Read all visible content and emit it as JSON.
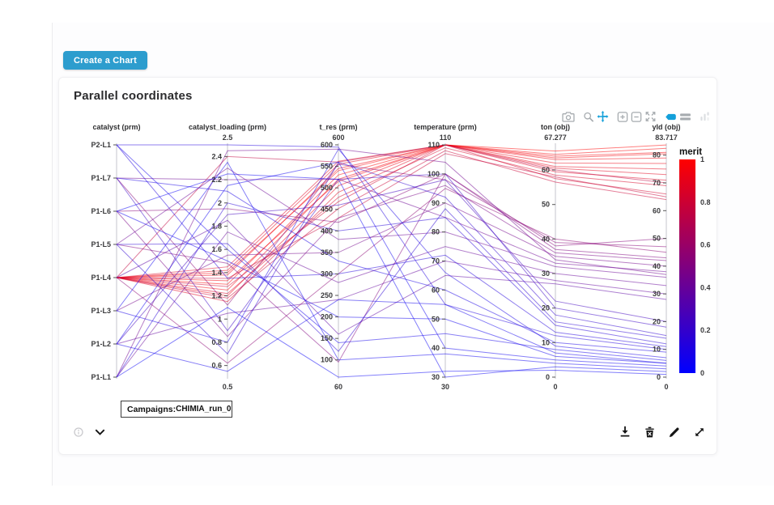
{
  "header": {
    "create_chart_button": "Create a Chart"
  },
  "card": {
    "title": "Parallel coordinates",
    "campaigns": {
      "label": "Campaigns:",
      "value": "CHIMIA_run_0"
    },
    "modebar": {
      "icon_color": "#a6abaf",
      "active_color": "#14a0da",
      "icons": [
        {
          "name": "camera-icon",
          "active": false,
          "group_start": false
        },
        {
          "name": "zoom-icon",
          "active": false,
          "group_start": true
        },
        {
          "name": "pan-icon",
          "active": true,
          "group_start": false
        },
        {
          "name": "zoom-in-icon",
          "active": false,
          "group_start": true
        },
        {
          "name": "zoom-out-icon",
          "active": false,
          "group_start": false
        },
        {
          "name": "autoscale-icon",
          "active": false,
          "group_start": false
        },
        {
          "name": "hover-closest-icon",
          "active": true,
          "group_start": true
        },
        {
          "name": "hover-compare-icon",
          "active": false,
          "group_start": false
        },
        {
          "name": "plotly-logo-icon",
          "active": false,
          "group_start": true
        }
      ]
    },
    "footer": {
      "left_icons": [
        "info-icon",
        "chevron-down-icon"
      ],
      "right_icons": [
        "download-icon",
        "delete-icon",
        "edit-icon",
        "expand-icon"
      ]
    }
  },
  "chart_data": {
    "type": "parallel-coordinates",
    "title": "Parallel coordinates",
    "line_opacity": 0.5,
    "colorbar": {
      "title": "merit",
      "tick_labels": [
        "1",
        "0.8",
        "0.6",
        "0.4",
        "0.2",
        "0"
      ],
      "top_color": "#ff0000",
      "bottom_color": "#0000ff"
    },
    "axes": [
      {
        "label": "catalyst (prm)",
        "type": "category",
        "categories_bottom_to_top": [
          "P1-L1",
          "P1-L2",
          "P1-L3",
          "P1-L4",
          "P1-L5",
          "P1-L6",
          "P1-L7",
          "P2-L1"
        ]
      },
      {
        "label": "catalyst_loading (prm)",
        "type": "linear",
        "range": [
          0.5,
          2.5
        ],
        "top_label": "2.5",
        "bottom_label": "0.5",
        "ticks": [
          "2.4",
          "2.2",
          "2",
          "1.8",
          "1.6",
          "1.4",
          "1.2",
          "1",
          "0.8",
          "0.6"
        ]
      },
      {
        "label": "t_res (prm)",
        "type": "linear",
        "range": [
          60,
          600
        ],
        "top_label": "600",
        "bottom_label": "60",
        "ticks": [
          "600",
          "550",
          "500",
          "450",
          "400",
          "350",
          "300",
          "250",
          "200",
          "150",
          "100"
        ]
      },
      {
        "label": "temperature (prm)",
        "type": "linear",
        "range": [
          30,
          110
        ],
        "top_label": "110",
        "bottom_label": "30",
        "ticks": [
          "110",
          "100",
          "90",
          "80",
          "70",
          "60",
          "50",
          "40",
          "30"
        ]
      },
      {
        "label": "ton (obj)",
        "type": "linear",
        "range": [
          0,
          67.277
        ],
        "top_label": "67.277",
        "bottom_label": "0",
        "ticks": [
          "60",
          "50",
          "40",
          "30",
          "20",
          "10",
          "0"
        ]
      },
      {
        "label": "yld (obj)",
        "type": "linear",
        "range": [
          0,
          83.717
        ],
        "top_label": "83.717",
        "bottom_label": "0",
        "ticks": [
          "80",
          "70",
          "60",
          "50",
          "40",
          "30",
          "20",
          "10",
          "0"
        ]
      }
    ],
    "lines": [
      {
        "values": [
          "P1-L4",
          1.3,
          530,
          110,
          65.5,
          83.7
        ],
        "merit": 1.0
      },
      {
        "values": [
          "P1-L4",
          1.4,
          540,
          110,
          64.5,
          82.5
        ],
        "merit": 0.98
      },
      {
        "values": [
          "P1-L4",
          1.25,
          520,
          110,
          64.0,
          81.0
        ],
        "merit": 0.97
      },
      {
        "values": [
          "P1-L4",
          1.33,
          515,
          110,
          63.5,
          80.5
        ],
        "merit": 0.96
      },
      {
        "values": [
          "P1-L4",
          1.38,
          545,
          110,
          63.0,
          79.0
        ],
        "merit": 0.95
      },
      {
        "values": [
          "P1-L4",
          1.2,
          505,
          110,
          62.0,
          77.0
        ],
        "merit": 0.93
      },
      {
        "values": [
          "P1-L4",
          1.42,
          555,
          110,
          61.0,
          75.0
        ],
        "merit": 0.91
      },
      {
        "values": [
          "P1-L4",
          1.15,
          490,
          110,
          60.5,
          73.0
        ],
        "merit": 0.89
      },
      {
        "values": [
          "P1-L4",
          1.45,
          562,
          110,
          59.5,
          71.0
        ],
        "merit": 0.87
      },
      {
        "values": [
          "P1-L4",
          1.22,
          478,
          109,
          58.5,
          69.0
        ],
        "merit": 0.85
      },
      {
        "values": [
          "P1-L4",
          1.28,
          468,
          110,
          57.5,
          66.0
        ],
        "merit": 0.83
      },
      {
        "values": [
          "P1-L4",
          1.18,
          452,
          108,
          56.5,
          64.0
        ],
        "merit": 0.8
      },
      {
        "values": [
          "P1-L4",
          1.35,
          430,
          107,
          58.0,
          65.0
        ],
        "merit": 0.78
      },
      {
        "values": [
          "P1-L4",
          2.4,
          560,
          110,
          60.0,
          70.0
        ],
        "merit": 0.76
      },
      {
        "values": [
          "P1-L4",
          0.62,
          300,
          95,
          40.0,
          45.0
        ],
        "merit": 0.55
      },
      {
        "values": [
          "P1-L7",
          1.12,
          555,
          98,
          39.0,
          47.0
        ],
        "merit": 0.53
      },
      {
        "values": [
          "P1-L6",
          1.95,
          420,
          100,
          38.0,
          50.0
        ],
        "merit": 0.52
      },
      {
        "values": [
          "P1-L5",
          1.48,
          95,
          100,
          37.0,
          43.0
        ],
        "merit": 0.5
      },
      {
        "values": [
          "P1-L6",
          0.85,
          430,
          96,
          36.0,
          42.0
        ],
        "merit": 0.48
      },
      {
        "values": [
          "P1-L3",
          1.55,
          350,
          90,
          35.0,
          40.0
        ],
        "merit": 0.45
      },
      {
        "values": [
          "P1-L1",
          2.45,
          590,
          104,
          34.0,
          37.0
        ],
        "merit": 0.44
      },
      {
        "values": [
          "P1-L7",
          2.2,
          520,
          85,
          33.0,
          38.0
        ],
        "merit": 0.42
      },
      {
        "values": [
          "P1-L5",
          2.3,
          380,
          80,
          32.0,
          36.0
        ],
        "merit": 0.41
      },
      {
        "values": [
          "P1-L1",
          1.75,
          280,
          75,
          30.0,
          33.0
        ],
        "merit": 0.4
      },
      {
        "values": [
          "P1-L2",
          1.05,
          240,
          70,
          28.0,
          30.0
        ],
        "merit": 0.38
      },
      {
        "values": [
          "P1-L4",
          1.85,
          160,
          65,
          27.0,
          28.0
        ],
        "merit": 0.36
      },
      {
        "values": [
          "P1-L2",
          1.9,
          460,
          98,
          22.0,
          20.0
        ],
        "merit": 0.25
      },
      {
        "values": [
          "P1-L7",
          0.9,
          520,
          100,
          20.0,
          18.0
        ],
        "merit": 0.22
      },
      {
        "values": [
          "P1-L5",
          0.7,
          560,
          92,
          18.0,
          15.0
        ],
        "merit": 0.18
      },
      {
        "values": [
          "P1-L5",
          1.65,
          120,
          88,
          16.0,
          14.0
        ],
        "merit": 0.16
      },
      {
        "values": [
          "P1-L1",
          2.0,
          400,
          85,
          15.0,
          12.0
        ],
        "merit": 0.15
      },
      {
        "values": [
          "P2-L1",
          1.35,
          300,
          72,
          13.0,
          11.0
        ],
        "merit": 0.13
      },
      {
        "values": [
          "P2-L1",
          2.5,
          595,
          55,
          12.0,
          10.0
        ],
        "merit": 0.12
      },
      {
        "values": [
          "P1-L7",
          2.1,
          330,
          60,
          10.0,
          9.0
        ],
        "merit": 0.1
      },
      {
        "values": [
          "P1-L3",
          0.8,
          590,
          66,
          9.0,
          7.0
        ],
        "merit": 0.09
      },
      {
        "values": [
          "P2-L1",
          1.6,
          140,
          45,
          8.0,
          6.0
        ],
        "merit": 0.08
      },
      {
        "values": [
          "P1-L2",
          0.55,
          240,
          55,
          7.0,
          5.0
        ],
        "merit": 0.07
      },
      {
        "values": [
          "P1-L6",
          1.5,
          200,
          50,
          6.0,
          5.0
        ],
        "merit": 0.06
      },
      {
        "values": [
          "P1-L2",
          2.15,
          560,
          40,
          5.0,
          4.0
        ],
        "merit": 0.05
      },
      {
        "values": [
          "P1-L3",
          2.35,
          100,
          38,
          4.0,
          3.0
        ],
        "merit": 0.05
      },
      {
        "values": [
          "P1-L6",
          2.25,
          520,
          30,
          3.0,
          2.0
        ],
        "merit": 0.04
      },
      {
        "values": [
          "P1-L1",
          1.1,
          60,
          32,
          2.0,
          1.0
        ],
        "merit": 0.03
      }
    ]
  }
}
